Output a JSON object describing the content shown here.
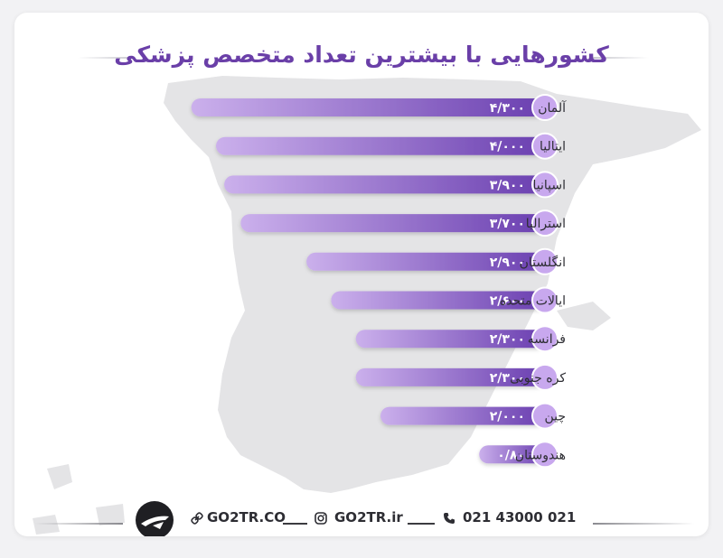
{
  "title": "کشورهایی با بیشترین تعداد متخصص پزشکی",
  "chart_data": {
    "type": "bar",
    "orientation": "horizontal",
    "categories": [
      "آلمان",
      "ایتالیا",
      "اسپانیا",
      "استرالیا",
      "انگلستان",
      "ایالات متحده",
      "فرانسه",
      "کره جنوبی",
      "چین",
      "هندوستان"
    ],
    "values": [
      4.3,
      4.0,
      3.9,
      3.7,
      2.9,
      2.6,
      2.3,
      2.3,
      2.0,
      0.8
    ],
    "value_labels": [
      "۴/۳۰۰",
      "۴/۰۰۰",
      "۳/۹۰۰",
      "۳/۷۰۰",
      "۲/۹۰۰",
      "۲/۶۰۰",
      "۲/۳۰۰",
      "۲/۳۰۰",
      "۲/۰۰۰",
      "۰/۸۰"
    ],
    "colors": {
      "bar_start": "#cbb0ec",
      "bar_end": "#6a3fb0",
      "cap": "#c8a8ee",
      "label": "#2d2d33"
    }
  },
  "footer": {
    "phone": "021 43000 021",
    "instagram": "GO2TR.ir",
    "website": "GO2TR.CO",
    "icons": [
      "phone-icon",
      "instagram-icon",
      "link-icon",
      "logo-icon"
    ]
  },
  "colors": {
    "title": "#6a3fa8",
    "map": "#e6e6e8",
    "text": "#2d2d33"
  }
}
